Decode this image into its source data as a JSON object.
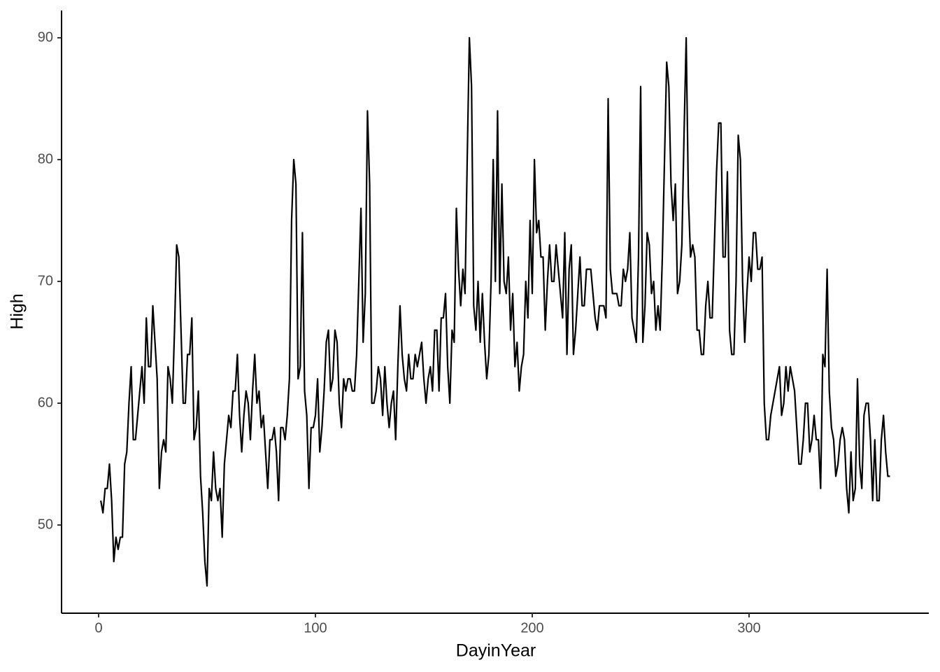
{
  "chart_data": {
    "type": "line",
    "x_label": "DayinYear",
    "y_label": "High",
    "color": "#000000",
    "xlim": [
      -17.1,
      382.9
    ],
    "ylim": [
      42.76,
      92.24
    ],
    "xticks": [
      0,
      100,
      200,
      300
    ],
    "yticks": [
      50,
      60,
      70,
      80,
      90
    ],
    "grid": false,
    "x": [
      1,
      2,
      3,
      4,
      5,
      6,
      7,
      8,
      9,
      10,
      11,
      12,
      13,
      14,
      15,
      16,
      17,
      18,
      19,
      20,
      21,
      22,
      23,
      24,
      25,
      26,
      27,
      28,
      29,
      30,
      31,
      32,
      33,
      34,
      35,
      36,
      37,
      38,
      39,
      40,
      41,
      42,
      43,
      44,
      45,
      46,
      47,
      48,
      49,
      50,
      51,
      52,
      53,
      54,
      55,
      56,
      57,
      58,
      59,
      60,
      61,
      62,
      63,
      64,
      65,
      66,
      67,
      68,
      69,
      70,
      71,
      72,
      73,
      74,
      75,
      76,
      77,
      78,
      79,
      80,
      81,
      82,
      83,
      84,
      85,
      86,
      87,
      88,
      89,
      90,
      91,
      92,
      93,
      94,
      95,
      96,
      97,
      98,
      99,
      100,
      101,
      102,
      103,
      104,
      105,
      106,
      107,
      108,
      109,
      110,
      111,
      112,
      113,
      114,
      115,
      116,
      117,
      118,
      119,
      120,
      121,
      122,
      123,
      124,
      125,
      126,
      127,
      128,
      129,
      130,
      131,
      132,
      133,
      134,
      135,
      136,
      137,
      138,
      139,
      140,
      141,
      142,
      143,
      144,
      145,
      146,
      147,
      148,
      149,
      150,
      151,
      152,
      153,
      154,
      155,
      156,
      157,
      158,
      159,
      160,
      161,
      162,
      163,
      164,
      165,
      166,
      167,
      168,
      169,
      170,
      171,
      172,
      173,
      174,
      175,
      176,
      177,
      178,
      179,
      180,
      181,
      182,
      183,
      184,
      185,
      186,
      187,
      188,
      189,
      190,
      191,
      192,
      193,
      194,
      195,
      196,
      197,
      198,
      199,
      200,
      201,
      202,
      203,
      204,
      205,
      206,
      207,
      208,
      209,
      210,
      211,
      212,
      213,
      214,
      215,
      216,
      217,
      218,
      219,
      220,
      221,
      222,
      223,
      224,
      225,
      226,
      227,
      228,
      229,
      230,
      231,
      232,
      233,
      234,
      235,
      236,
      237,
      238,
      239,
      240,
      241,
      242,
      243,
      244,
      245,
      246,
      247,
      248,
      249,
      250,
      251,
      252,
      253,
      254,
      255,
      256,
      257,
      258,
      259,
      260,
      261,
      262,
      263,
      264,
      265,
      266,
      267,
      268,
      269,
      270,
      271,
      272,
      273,
      274,
      275,
      276,
      277,
      278,
      279,
      280,
      281,
      282,
      283,
      284,
      285,
      286,
      287,
      288,
      289,
      290,
      291,
      292,
      293,
      294,
      295,
      296,
      297,
      298,
      299,
      300,
      301,
      302,
      303,
      304,
      305,
      306,
      307,
      308,
      309,
      310,
      311,
      312,
      313,
      314,
      315,
      316,
      317,
      318,
      319,
      320,
      321,
      322,
      323,
      324,
      325,
      326,
      327,
      328,
      329,
      330,
      331,
      332,
      333,
      334,
      335,
      336,
      337,
      338,
      339,
      340,
      341,
      342,
      343,
      344,
      345,
      346,
      347,
      348,
      349,
      350,
      351,
      352,
      353,
      354,
      355,
      356,
      357,
      358,
      359,
      360,
      361,
      362,
      363,
      364,
      365
    ],
    "values": [
      52,
      51,
      53,
      53,
      55,
      52,
      47,
      49,
      48,
      49,
      49,
      55,
      56,
      60,
      63,
      57,
      57,
      59,
      61,
      63,
      60,
      67,
      63,
      63,
      68,
      65,
      62,
      53,
      56,
      57,
      56,
      63,
      62,
      60,
      66,
      73,
      72,
      66,
      60,
      60,
      64,
      64,
      67,
      57,
      58,
      61,
      54,
      51,
      47,
      45,
      53,
      52,
      56,
      53,
      52,
      53,
      49,
      55,
      57,
      59,
      58,
      61,
      61,
      64,
      59,
      56,
      59,
      61,
      60,
      57,
      61,
      64,
      60,
      61,
      58,
      59,
      56,
      53,
      57,
      57,
      58,
      56,
      52,
      58,
      58,
      57,
      59,
      62,
      75,
      80,
      78,
      62,
      63,
      74,
      61,
      59,
      53,
      58,
      58,
      59,
      62,
      56,
      58,
      61,
      65,
      66,
      61,
      62,
      66,
      65,
      60,
      58,
      62,
      61,
      62,
      62,
      61,
      61,
      64,
      70,
      76,
      65,
      69,
      84,
      78,
      60,
      60,
      61,
      63,
      62,
      59,
      63,
      60,
      58,
      60,
      61,
      57,
      63,
      68,
      64,
      62,
      61,
      64,
      62,
      62,
      64,
      63,
      64,
      65,
      62,
      60,
      62,
      63,
      61,
      66,
      66,
      61,
      67,
      67,
      69,
      63,
      60,
      66,
      65,
      76,
      71,
      68,
      71,
      69,
      80,
      90,
      86,
      68,
      66,
      70,
      65,
      69,
      65,
      62,
      64,
      70,
      80,
      70,
      84,
      69,
      78,
      70,
      69,
      72,
      66,
      69,
      63,
      65,
      61,
      63,
      64,
      70,
      67,
      75,
      69,
      80,
      74,
      75,
      72,
      72,
      66,
      70,
      73,
      70,
      70,
      73,
      71,
      69,
      67,
      74,
      64,
      71,
      73,
      64,
      66,
      69,
      72,
      68,
      68,
      71,
      71,
      71,
      69,
      67,
      66,
      68,
      68,
      68,
      67,
      85,
      71,
      69,
      69,
      69,
      68,
      68,
      71,
      70,
      71,
      74,
      67,
      66,
      65,
      72,
      86,
      65,
      68,
      74,
      73,
      69,
      70,
      66,
      68,
      66,
      72,
      80,
      88,
      86,
      78,
      75,
      78,
      69,
      70,
      73,
      82,
      90,
      77,
      72,
      73,
      72,
      66,
      66,
      64,
      64,
      68,
      70,
      67,
      67,
      73,
      79,
      83,
      83,
      72,
      72,
      79,
      66,
      64,
      64,
      70,
      82,
      80,
      70,
      65,
      69,
      72,
      70,
      74,
      74,
      71,
      71,
      72,
      60,
      57,
      57,
      59,
      60,
      61,
      62,
      63,
      59,
      60,
      63,
      61,
      63,
      62,
      61,
      58,
      55,
      55,
      57,
      60,
      60,
      56,
      57,
      59,
      57,
      57,
      53,
      64,
      63,
      71,
      61,
      58,
      57,
      54,
      55,
      57,
      58,
      57,
      53,
      51,
      56,
      52,
      53,
      62,
      55,
      53,
      59,
      60,
      60,
      57,
      52,
      57,
      52,
      52,
      57,
      59,
      56,
      54,
      54
    ]
  }
}
